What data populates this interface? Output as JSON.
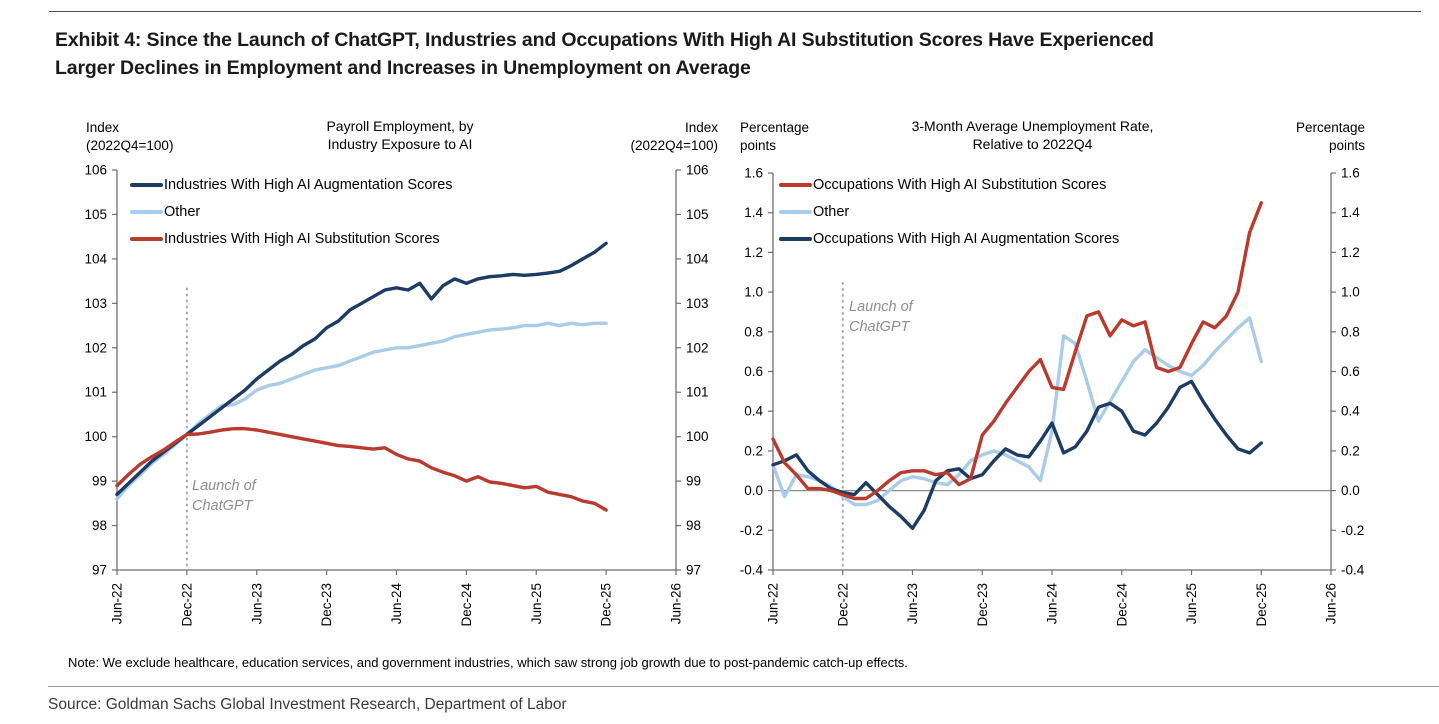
{
  "header": {
    "title_line1": "Exhibit 4: Since the Launch of ChatGPT, Industries and Occupations With High AI Substitution Scores Have Experienced",
    "title_line2": "Larger Declines in Employment and Increases in Unemployment on Average"
  },
  "note": "Note: We exclude healthcare, education services, and government industries, which saw strong job growth due to post-pandemic catch-up effects.",
  "source": "Source: Goldman Sachs Global Investment Research, Department of Labor",
  "colors": {
    "augmentation_navy": "#1c3c63",
    "other_light_blue": "#a9cce9",
    "substitution_red": "#bb3a2e",
    "axis_gray": "#6e6e6e",
    "dotted_gray": "#a6a6a6",
    "zero_line_gray": "#8c8c8c",
    "annotation_gray": "#8e8e8e"
  },
  "chart_data": [
    {
      "type": "line",
      "title_line1": "Payroll Employment, by",
      "title_line2": "Industry Exposure to AI",
      "left_axis_label_line1": "Index",
      "left_axis_label_line2": "(2022Q4=100)",
      "right_axis_label_line1": "Index",
      "right_axis_label_line2": "(2022Q4=100)",
      "ylim": [
        97,
        106
      ],
      "yticks": [
        106,
        105,
        104,
        103,
        102,
        101,
        100,
        99,
        98,
        97
      ],
      "ytick_decimals": 0,
      "zero_line": false,
      "x_ticks": [
        "Jun-22",
        "Dec-22",
        "Jun-23",
        "Dec-23",
        "Jun-24",
        "Dec-24",
        "Jun-25",
        "Dec-25",
        "Jun-26"
      ],
      "x_tick_month_indices": [
        0,
        6,
        12,
        18,
        24,
        30,
        36,
        42,
        48
      ],
      "x_axis_months_total": 48,
      "series_start_month": "Jun-22",
      "annotation": {
        "text_line1": "Launch of",
        "text_line2": "ChatGPT",
        "at_month": "Dec-22",
        "month_index": 6,
        "line_top_value": 103.35
      },
      "legend_position": "top-left-inside",
      "grid": false,
      "draw_order": [
        1,
        0,
        2
      ],
      "series": [
        {
          "name": "Industries With High AI Augmentation Scores",
          "color_key": "augmentation_navy",
          "values": [
            98.7,
            98.95,
            99.2,
            99.45,
            99.65,
            99.85,
            100.05,
            100.25,
            100.45,
            100.65,
            100.85,
            101.05,
            101.3,
            101.5,
            101.7,
            101.85,
            102.05,
            102.2,
            102.45,
            102.6,
            102.85,
            103.0,
            103.15,
            103.3,
            103.35,
            103.3,
            103.45,
            103.1,
            103.4,
            103.55,
            103.45,
            103.55,
            103.6,
            103.62,
            103.65,
            103.63,
            103.65,
            103.68,
            103.72,
            103.85,
            104.0,
            104.15,
            104.35
          ]
        },
        {
          "name": "Other",
          "color_key": "other_light_blue",
          "values": [
            98.6,
            98.9,
            99.15,
            99.4,
            99.6,
            99.82,
            100.05,
            100.3,
            100.5,
            100.7,
            100.72,
            100.85,
            101.05,
            101.15,
            101.2,
            101.3,
            101.4,
            101.5,
            101.55,
            101.6,
            101.7,
            101.8,
            101.9,
            101.95,
            102.0,
            102.0,
            102.05,
            102.1,
            102.15,
            102.25,
            102.3,
            102.35,
            102.4,
            102.42,
            102.45,
            102.5,
            102.5,
            102.55,
            102.5,
            102.55,
            102.52,
            102.55,
            102.55
          ]
        },
        {
          "name": "Industries With High AI Substitution Scores",
          "color_key": "substitution_red",
          "values": [
            98.9,
            99.15,
            99.38,
            99.55,
            99.7,
            99.88,
            100.05,
            100.06,
            100.1,
            100.15,
            100.18,
            100.18,
            100.15,
            100.1,
            100.05,
            100.0,
            99.95,
            99.9,
            99.85,
            99.8,
            99.78,
            99.75,
            99.72,
            99.75,
            99.6,
            99.5,
            99.45,
            99.3,
            99.2,
            99.12,
            99.0,
            99.1,
            98.98,
            98.95,
            98.9,
            98.85,
            98.88,
            98.75,
            98.7,
            98.65,
            98.55,
            98.5,
            98.35
          ]
        }
      ]
    },
    {
      "type": "line",
      "title_line1": "3-Month Average Unemployment Rate,",
      "title_line2": "Relative to 2022Q4",
      "left_axis_label_line1": "Percentage",
      "left_axis_label_line2": "points",
      "right_axis_label_line1": "Percentage",
      "right_axis_label_line2": "points",
      "ylim": [
        -0.4,
        1.6
      ],
      "yticks": [
        1.6,
        1.4,
        1.2,
        1.0,
        0.8,
        0.6,
        0.4,
        0.2,
        0.0,
        -0.2,
        -0.4
      ],
      "ytick_decimals": 1,
      "zero_line": true,
      "x_ticks": [
        "Jun-22",
        "Dec-22",
        "Jun-23",
        "Dec-23",
        "Jun-24",
        "Dec-24",
        "Jun-25",
        "Dec-25",
        "Jun-26"
      ],
      "x_tick_month_indices": [
        0,
        6,
        12,
        18,
        24,
        30,
        36,
        42,
        48
      ],
      "x_axis_months_total": 48,
      "series_start_month": "Jun-22",
      "annotation": {
        "text_line1": "Launch of",
        "text_line2": "ChatGPT",
        "at_month": "Dec-22",
        "month_index": 6,
        "line_top_value": 1.05
      },
      "legend_position": "top-left-inside",
      "grid": false,
      "draw_order": [
        1,
        2,
        0
      ],
      "series": [
        {
          "name": "Occupations With High AI Substitution Scores",
          "color_key": "substitution_red",
          "values": [
            0.26,
            0.14,
            0.08,
            0.01,
            0.01,
            0.0,
            -0.02,
            -0.04,
            -0.04,
            0.0,
            0.05,
            0.09,
            0.1,
            0.1,
            0.08,
            0.09,
            0.03,
            0.06,
            0.28,
            0.35,
            0.44,
            0.52,
            0.6,
            0.66,
            0.52,
            0.51,
            0.7,
            0.88,
            0.9,
            0.78,
            0.86,
            0.83,
            0.85,
            0.62,
            0.6,
            0.62,
            0.74,
            0.85,
            0.82,
            0.88,
            1.0,
            1.3,
            1.45
          ]
        },
        {
          "name": "Other",
          "color_key": "other_light_blue",
          "values": [
            0.13,
            -0.03,
            0.08,
            0.07,
            0.05,
            0.02,
            -0.03,
            -0.07,
            -0.07,
            -0.05,
            0.0,
            0.05,
            0.07,
            0.06,
            0.04,
            0.03,
            0.08,
            0.15,
            0.18,
            0.2,
            0.18,
            0.15,
            0.12,
            0.05,
            0.3,
            0.78,
            0.74,
            0.55,
            0.35,
            0.45,
            0.55,
            0.65,
            0.71,
            0.67,
            0.63,
            0.6,
            0.58,
            0.63,
            0.7,
            0.76,
            0.82,
            0.87,
            0.65
          ]
        },
        {
          "name": "Occupations With High AI Augmentation Scores",
          "color_key": "augmentation_navy",
          "values": [
            0.13,
            0.15,
            0.18,
            0.1,
            0.05,
            0.01,
            -0.01,
            -0.02,
            0.04,
            -0.02,
            -0.08,
            -0.13,
            -0.19,
            -0.1,
            0.05,
            0.1,
            0.11,
            0.06,
            0.08,
            0.15,
            0.21,
            0.18,
            0.17,
            0.25,
            0.34,
            0.19,
            0.22,
            0.3,
            0.42,
            0.44,
            0.4,
            0.3,
            0.28,
            0.34,
            0.42,
            0.52,
            0.55,
            0.45,
            0.36,
            0.28,
            0.21,
            0.19,
            0.24
          ]
        }
      ]
    }
  ]
}
